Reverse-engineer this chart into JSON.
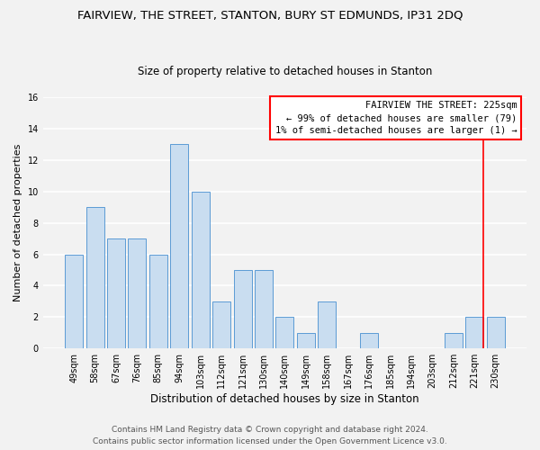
{
  "title": "FAIRVIEW, THE STREET, STANTON, BURY ST EDMUNDS, IP31 2DQ",
  "subtitle": "Size of property relative to detached houses in Stanton",
  "xlabel": "Distribution of detached houses by size in Stanton",
  "ylabel": "Number of detached properties",
  "bar_labels": [
    "49sqm",
    "58sqm",
    "67sqm",
    "76sqm",
    "85sqm",
    "94sqm",
    "103sqm",
    "112sqm",
    "121sqm",
    "130sqm",
    "140sqm",
    "149sqm",
    "158sqm",
    "167sqm",
    "176sqm",
    "185sqm",
    "194sqm",
    "203sqm",
    "212sqm",
    "221sqm",
    "230sqm"
  ],
  "bar_values": [
    6,
    9,
    7,
    7,
    6,
    13,
    10,
    3,
    5,
    5,
    2,
    1,
    3,
    0,
    1,
    0,
    0,
    0,
    1,
    2,
    2
  ],
  "bar_color": "#c9ddf0",
  "bar_edge_color": "#5b9bd5",
  "ylim": [
    0,
    16
  ],
  "yticks": [
    0,
    2,
    4,
    6,
    8,
    10,
    12,
    14,
    16
  ],
  "annotation_line1": "FAIRVIEW THE STREET: 225sqm",
  "annotation_line2": "← 99% of detached houses are smaller (79)",
  "annotation_line3": "1% of semi-detached houses are larger (1) →",
  "property_line_bar_index": 20,
  "footer_line1": "Contains HM Land Registry data © Crown copyright and database right 2024.",
  "footer_line2": "Contains public sector information licensed under the Open Government Licence v3.0.",
  "background_color": "#f2f2f2",
  "grid_color": "#ffffff",
  "title_fontsize": 9.5,
  "subtitle_fontsize": 8.5,
  "xlabel_fontsize": 8.5,
  "ylabel_fontsize": 8,
  "tick_fontsize": 7,
  "footer_fontsize": 6.5
}
